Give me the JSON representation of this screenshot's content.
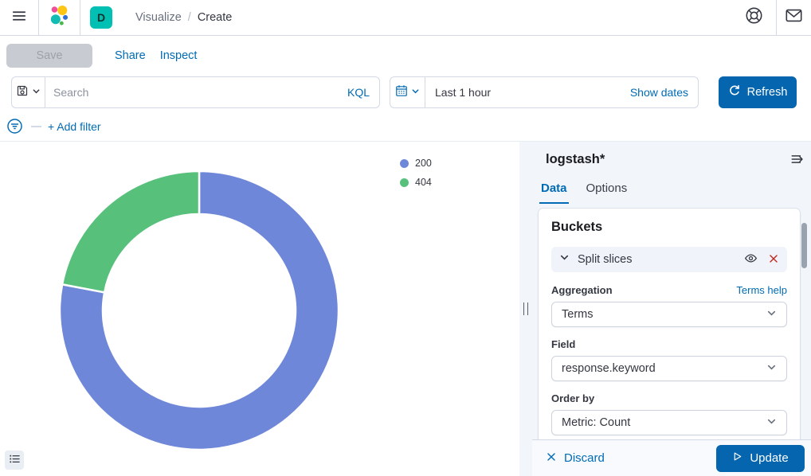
{
  "colors": {
    "primary_link": "#006BB4",
    "button_fill": "#0565AE",
    "badge_teal": "#00BFB3",
    "danger": "#BD271E",
    "slice_200": "#6F87D8",
    "slice_404": "#57C17B"
  },
  "header": {
    "breadcrumb_section": "Visualize",
    "breadcrumb_separator": "/",
    "breadcrumb_current": "Create",
    "space_badge": "D"
  },
  "toolbar": {
    "save_label": "Save",
    "share_label": "Share",
    "inspect_label": "Inspect"
  },
  "query_bar": {
    "search_placeholder": "Search",
    "language_label": "KQL",
    "time_range": "Last 1 hour",
    "show_dates_label": "Show dates",
    "refresh_label": "Refresh"
  },
  "filter_bar": {
    "add_filter_label": "+ Add filter"
  },
  "chart_data": {
    "type": "pie",
    "subtype": "donut",
    "title": "",
    "categories": [
      "200",
      "404"
    ],
    "values": [
      78,
      22
    ],
    "unit": "percent (estimated from arc angles; counts not labeled on chart)",
    "colors": [
      "#6F87D8",
      "#57C17B"
    ],
    "start_angle_deg": 0,
    "clockwise": true,
    "inner_radius_ratio": 0.69,
    "legend_position": "top-right",
    "legend_entries": [
      "200",
      "404"
    ]
  },
  "panel": {
    "title": "logstash*",
    "tabs": [
      "Data",
      "Options"
    ],
    "active_tab": "Data",
    "buckets_heading": "Buckets",
    "bucket_row_label": "Split slices",
    "aggregation_label": "Aggregation",
    "aggregation_help": "Terms help",
    "aggregation_value": "Terms",
    "field_label": "Field",
    "field_value": "response.keyword",
    "order_by_label": "Order by",
    "order_by_value": "Metric: Count",
    "discard_label": "Discard",
    "update_label": "Update"
  },
  "icons": {
    "menu": "hamburger ≡",
    "elastic-logo": "colored circle cluster",
    "help": "life-ring",
    "mail": "envelope ✉",
    "saved-query": "floppy 💾 + chevron ⌄",
    "calendar": "calendar + chevron ⌄",
    "refresh": "↻",
    "filter": "circle with lines",
    "collapse-panel": "⇥ lines with right arrow",
    "chevron-down": "⌄",
    "eye": "👁",
    "remove": "✕",
    "play": "▷",
    "legend-list": "≔",
    "resize-grip": "‖"
  }
}
